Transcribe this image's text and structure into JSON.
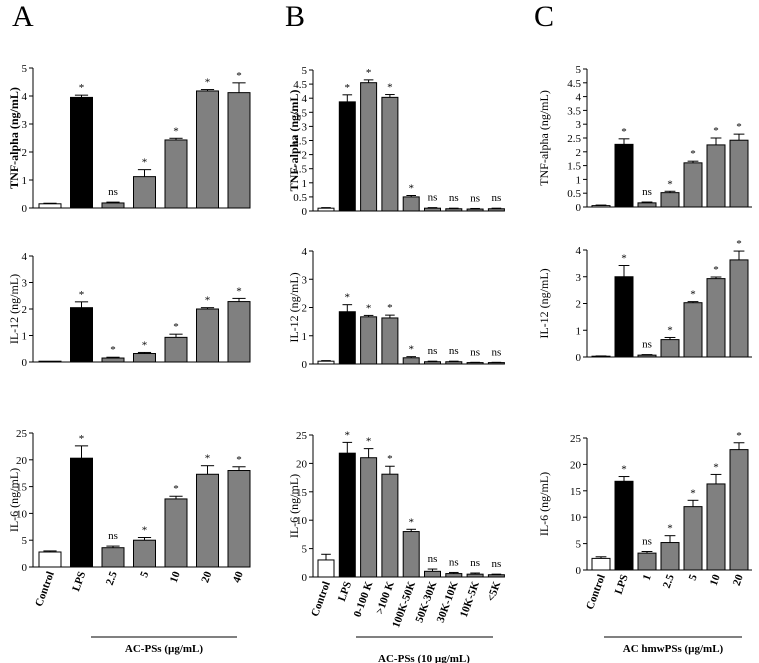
{
  "panels": [
    "A",
    "B",
    "C"
  ],
  "group_labels": [
    "AC-PSs (µg/mL)",
    "AC-PSs (10 µg/mL)",
    "AC hmwPSs (µg/mL)"
  ],
  "colors": {
    "control": "#ffffff",
    "lps": "#000000",
    "sample": "#808080",
    "stroke": "#000000"
  },
  "chart_data": [
    {
      "type": "bar",
      "panel": "A",
      "title": "",
      "ylabel": "TNF-alpha (ng/mL)",
      "ylim": [
        0,
        5
      ],
      "yticks": [
        "0",
        "1",
        "2",
        "3",
        "4",
        "5"
      ],
      "categories": [
        "Control",
        "LPS",
        "2.5",
        "5",
        "10",
        "20",
        "40"
      ],
      "values": [
        0.15,
        3.95,
        0.18,
        1.12,
        2.43,
        4.18,
        4.12
      ],
      "errors": [
        0.02,
        0.08,
        0.03,
        0.25,
        0.06,
        0.05,
        0.35
      ],
      "significance": [
        "",
        "*",
        "ns",
        "*",
        "*",
        "*",
        "*"
      ]
    },
    {
      "type": "bar",
      "panel": "A",
      "title": "",
      "ylabel": "IL-12 (ng/mL)",
      "ylim": [
        0,
        4
      ],
      "yticks": [
        "0",
        "1",
        "2",
        "3",
        "4"
      ],
      "categories": [
        "Control",
        "LPS",
        "2.5",
        "5",
        "10",
        "20",
        "40"
      ],
      "values": [
        0.0,
        2.05,
        0.15,
        0.32,
        0.93,
        2.0,
        2.28
      ],
      "errors": [
        0.0,
        0.22,
        0.03,
        0.04,
        0.12,
        0.05,
        0.12
      ],
      "significance": [
        "",
        "*",
        "*",
        "*",
        "*",
        "*",
        "*"
      ]
    },
    {
      "type": "bar",
      "panel": "A",
      "title": "",
      "ylabel": "IL-6 (ng/mL)",
      "ylim": [
        0,
        25
      ],
      "yticks": [
        "0",
        "5",
        "10",
        "15",
        "20",
        "25"
      ],
      "categories": [
        "Control",
        "LPS",
        "2.5",
        "5",
        "10",
        "20",
        "40"
      ],
      "values": [
        2.8,
        20.3,
        3.6,
        5.0,
        12.7,
        17.3,
        18.0
      ],
      "errors": [
        0.2,
        2.3,
        0.3,
        0.5,
        0.5,
        1.6,
        0.7
      ],
      "significance": [
        "",
        "*",
        "ns",
        "*",
        "*",
        "*",
        "*"
      ]
    },
    {
      "type": "bar",
      "panel": "B",
      "title": "",
      "ylabel": "TNF-alpha (ng/mL)",
      "ylim": [
        0,
        5
      ],
      "yticks": [
        "0",
        "0.5",
        "1",
        "1.5",
        "2",
        "2.5",
        "3",
        "3.5",
        "4",
        "4.5",
        "5"
      ],
      "categories": [
        "Control",
        "LPS",
        "0-100 K",
        ">100 K",
        "100K-50K",
        "50K-30K",
        "30K-10K",
        "10K-5K",
        "<5K"
      ],
      "values": [
        0.1,
        3.87,
        4.55,
        4.03,
        0.5,
        0.1,
        0.08,
        0.07,
        0.08
      ],
      "errors": [
        0.02,
        0.25,
        0.1,
        0.1,
        0.05,
        0.02,
        0.02,
        0.02,
        0.02
      ],
      "significance": [
        "",
        "*",
        "*",
        "*",
        "*",
        "ns",
        "ns",
        "ns",
        "ns"
      ]
    },
    {
      "type": "bar",
      "panel": "B",
      "title": "",
      "ylabel": "IL-12 (ng/mL)",
      "ylim": [
        0,
        4
      ],
      "yticks": [
        "0",
        "1",
        "2",
        "3",
        "4"
      ],
      "categories": [
        "Control",
        "LPS",
        "0-100 K",
        ">100 K",
        "100K-50K",
        "50K-30K",
        "30K-10K",
        "10K-5K",
        "<5K"
      ],
      "values": [
        0.1,
        1.85,
        1.67,
        1.63,
        0.22,
        0.08,
        0.08,
        0.05,
        0.05
      ],
      "errors": [
        0.02,
        0.25,
        0.05,
        0.1,
        0.04,
        0.02,
        0.02,
        0.01,
        0.01
      ],
      "significance": [
        "",
        "*",
        "*",
        "*",
        "*",
        "ns",
        "ns",
        "ns",
        "ns"
      ]
    },
    {
      "type": "bar",
      "panel": "B",
      "title": "",
      "ylabel": "IL-6 (ng/mL)",
      "ylim": [
        0,
        25
      ],
      "yticks": [
        "0",
        "5",
        "10",
        "15",
        "20",
        "25"
      ],
      "categories": [
        "Control",
        "LPS",
        "0-100 K",
        ">100 K",
        "100K-50K",
        "50K-30K",
        "30K-10K",
        "10K-5K",
        "<5K"
      ],
      "values": [
        3.0,
        21.8,
        21.0,
        18.1,
        8.0,
        1.0,
        0.6,
        0.5,
        0.4
      ],
      "errors": [
        1.0,
        1.9,
        1.6,
        1.4,
        0.4,
        0.4,
        0.2,
        0.2,
        0.1
      ],
      "significance": [
        "",
        "*",
        "*",
        "*",
        "*",
        "ns",
        "ns",
        "ns",
        "ns"
      ]
    },
    {
      "type": "bar",
      "panel": "C",
      "title": "",
      "ylabel": "TNF-alpha (ng/mL)",
      "ylim": [
        0,
        5
      ],
      "yticks": [
        "0",
        "0.5",
        "1",
        "1.5",
        "2",
        "2.5",
        "3",
        "3.5",
        "4",
        "4.5",
        "5"
      ],
      "categories": [
        "Control",
        "LPS",
        "1",
        "2.5",
        "5",
        "10",
        "20"
      ],
      "values": [
        0.05,
        2.27,
        0.15,
        0.52,
        1.6,
        2.25,
        2.42
      ],
      "errors": [
        0.02,
        0.2,
        0.03,
        0.05,
        0.06,
        0.25,
        0.22
      ],
      "significance": [
        "",
        "*",
        "ns",
        "*",
        "*",
        "*",
        "*"
      ]
    },
    {
      "type": "bar",
      "panel": "C",
      "title": "",
      "ylabel": "IL-12 (ng/mL)",
      "ylim": [
        0,
        4
      ],
      "yticks": [
        "0",
        "1",
        "2",
        "3",
        "4"
      ],
      "categories": [
        "Control",
        "LPS",
        "1",
        "2.5",
        "5",
        "10",
        "20"
      ],
      "values": [
        0.03,
        3.0,
        0.07,
        0.65,
        2.03,
        2.93,
        3.63
      ],
      "errors": [
        0.01,
        0.42,
        0.02,
        0.08,
        0.04,
        0.06,
        0.33
      ],
      "significance": [
        "",
        "*",
        "ns",
        "*",
        "*",
        "*",
        "*"
      ]
    },
    {
      "type": "bar",
      "panel": "C",
      "title": "",
      "ylabel": "IL-6 (ng/mL)",
      "ylim": [
        0,
        25
      ],
      "yticks": [
        "0",
        "5",
        "10",
        "15",
        "20",
        "25"
      ],
      "categories": [
        "Control",
        "LPS",
        "1",
        "2.5",
        "5",
        "10",
        "20"
      ],
      "values": [
        2.2,
        16.8,
        3.2,
        5.2,
        12.0,
        16.3,
        22.8
      ],
      "errors": [
        0.3,
        0.9,
        0.3,
        1.3,
        1.2,
        1.8,
        1.3
      ],
      "significance": [
        "",
        "*",
        "ns",
        "*",
        "*",
        "*",
        "*"
      ]
    }
  ]
}
